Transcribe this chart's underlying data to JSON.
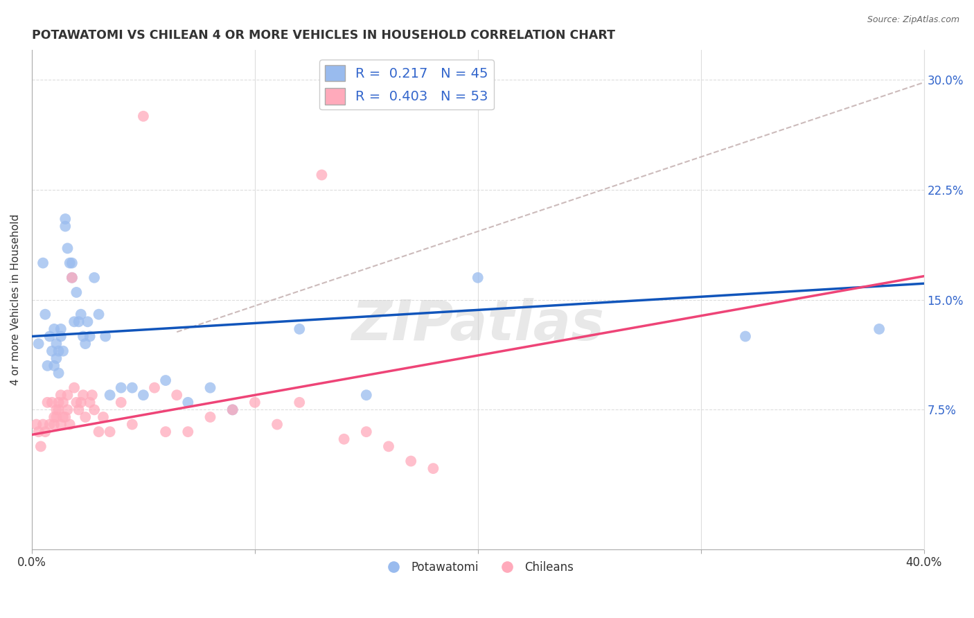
{
  "title": "POTAWATOMI VS CHILEAN 4 OR MORE VEHICLES IN HOUSEHOLD CORRELATION CHART",
  "source": "Source: ZipAtlas.com",
  "ylabel": "4 or more Vehicles in Household",
  "xlim": [
    0.0,
    0.4
  ],
  "ylim": [
    -0.02,
    0.32
  ],
  "yticks": [
    0.075,
    0.15,
    0.225,
    0.3
  ],
  "ytick_labels": [
    "7.5%",
    "15.0%",
    "22.5%",
    "30.0%"
  ],
  "xticks": [
    0.0,
    0.1,
    0.2,
    0.3,
    0.4
  ],
  "xtick_labels": [
    "0.0%",
    "",
    "",
    "",
    "40.0%"
  ],
  "potawatomi_R": 0.217,
  "potawatomi_N": 45,
  "chilean_R": 0.403,
  "chilean_N": 53,
  "blue_color": "#99BBEE",
  "pink_color": "#FFAABB",
  "blue_line_color": "#1155BB",
  "pink_line_color": "#EE4477",
  "dashed_line_color": "#CCBBBB",
  "background_color": "#FFFFFF",
  "watermark": "ZIPatlas",
  "blue_intercept": 0.125,
  "blue_slope": 0.09,
  "pink_intercept": 0.058,
  "pink_slope": 0.27,
  "potawatomi_x": [
    0.003,
    0.005,
    0.006,
    0.007,
    0.008,
    0.009,
    0.01,
    0.01,
    0.011,
    0.011,
    0.012,
    0.012,
    0.013,
    0.013,
    0.014,
    0.015,
    0.015,
    0.016,
    0.017,
    0.018,
    0.018,
    0.019,
    0.02,
    0.021,
    0.022,
    0.023,
    0.024,
    0.025,
    0.026,
    0.028,
    0.03,
    0.033,
    0.035,
    0.04,
    0.045,
    0.05,
    0.06,
    0.07,
    0.08,
    0.09,
    0.12,
    0.15,
    0.2,
    0.32,
    0.38
  ],
  "potawatomi_y": [
    0.12,
    0.175,
    0.14,
    0.105,
    0.125,
    0.115,
    0.13,
    0.105,
    0.12,
    0.11,
    0.115,
    0.1,
    0.125,
    0.13,
    0.115,
    0.2,
    0.205,
    0.185,
    0.175,
    0.175,
    0.165,
    0.135,
    0.155,
    0.135,
    0.14,
    0.125,
    0.12,
    0.135,
    0.125,
    0.165,
    0.14,
    0.125,
    0.085,
    0.09,
    0.09,
    0.085,
    0.095,
    0.08,
    0.09,
    0.075,
    0.13,
    0.085,
    0.165,
    0.125,
    0.13
  ],
  "chilean_x": [
    0.002,
    0.003,
    0.004,
    0.005,
    0.006,
    0.007,
    0.008,
    0.009,
    0.01,
    0.01,
    0.011,
    0.011,
    0.012,
    0.012,
    0.013,
    0.013,
    0.014,
    0.014,
    0.015,
    0.016,
    0.016,
    0.017,
    0.018,
    0.019,
    0.02,
    0.021,
    0.022,
    0.023,
    0.024,
    0.026,
    0.027,
    0.028,
    0.03,
    0.032,
    0.035,
    0.04,
    0.045,
    0.05,
    0.055,
    0.06,
    0.065,
    0.07,
    0.08,
    0.09,
    0.1,
    0.11,
    0.12,
    0.13,
    0.14,
    0.15,
    0.16,
    0.17,
    0.18
  ],
  "chilean_y": [
    0.065,
    0.06,
    0.05,
    0.065,
    0.06,
    0.08,
    0.065,
    0.08,
    0.07,
    0.065,
    0.075,
    0.07,
    0.075,
    0.08,
    0.065,
    0.085,
    0.07,
    0.08,
    0.07,
    0.085,
    0.075,
    0.065,
    0.165,
    0.09,
    0.08,
    0.075,
    0.08,
    0.085,
    0.07,
    0.08,
    0.085,
    0.075,
    0.06,
    0.07,
    0.06,
    0.08,
    0.065,
    0.275,
    0.09,
    0.06,
    0.085,
    0.06,
    0.07,
    0.075,
    0.08,
    0.065,
    0.08,
    0.235,
    0.055,
    0.06,
    0.05,
    0.04,
    0.035
  ]
}
